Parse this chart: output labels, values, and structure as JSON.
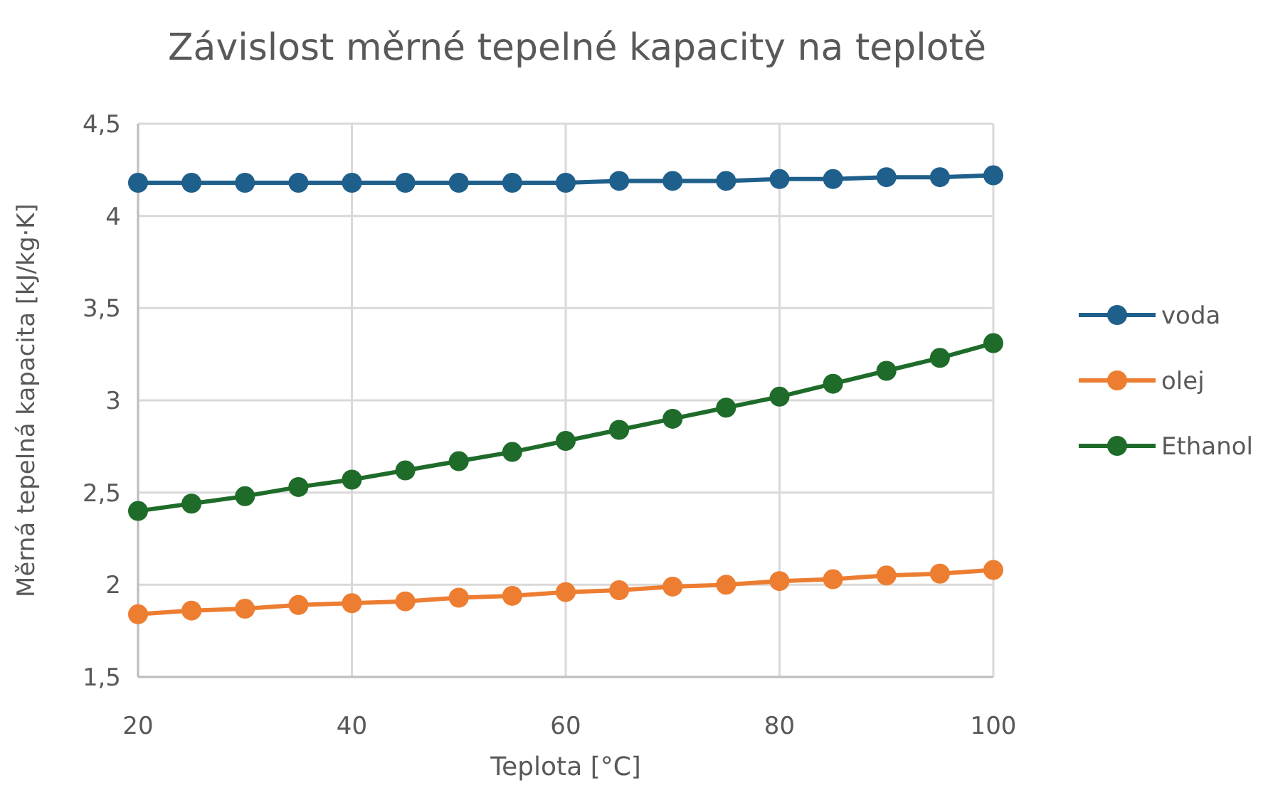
{
  "chart_data": {
    "type": "line",
    "title": "Závislost měrné tepelné kapacity na teplotě",
    "xlabel": "Teplota [°C]",
    "ylabel": "Měrná tepelná kapacita  [kJ/kg·K]",
    "x": [
      20,
      25,
      30,
      35,
      40,
      45,
      50,
      55,
      60,
      65,
      70,
      75,
      80,
      85,
      90,
      95,
      100
    ],
    "series": [
      {
        "name": "voda",
        "color": "#1f5f8b",
        "values": [
          4.18,
          4.18,
          4.18,
          4.18,
          4.18,
          4.18,
          4.18,
          4.18,
          4.18,
          4.19,
          4.19,
          4.19,
          4.2,
          4.2,
          4.21,
          4.21,
          4.22
        ]
      },
      {
        "name": "olej",
        "color": "#ed7d31",
        "values": [
          1.84,
          1.86,
          1.87,
          1.89,
          1.9,
          1.91,
          1.93,
          1.94,
          1.96,
          1.97,
          1.99,
          2.0,
          2.02,
          2.03,
          2.05,
          2.06,
          2.08
        ]
      },
      {
        "name": "Ethanol",
        "color": "#1e6b2a",
        "values": [
          2.4,
          2.44,
          2.48,
          2.53,
          2.57,
          2.62,
          2.67,
          2.72,
          2.78,
          2.84,
          2.9,
          2.96,
          3.02,
          3.09,
          3.16,
          3.23,
          3.31
        ]
      }
    ],
    "xlim": [
      20,
      100
    ],
    "xticks": [
      20,
      40,
      60,
      80,
      100
    ],
    "ylim": [
      1.5,
      4.5
    ],
    "yticks": [
      {
        "value": 1.5,
        "label": "1,5"
      },
      2,
      {
        "value": 2.5,
        "label": "2,5"
      },
      3,
      {
        "value": 3.5,
        "label": "3,5"
      },
      4,
      {
        "value": 4.5,
        "label": "4,5"
      }
    ],
    "grid": true,
    "legend": "right",
    "marker": "circle",
    "line_style": "solid"
  }
}
